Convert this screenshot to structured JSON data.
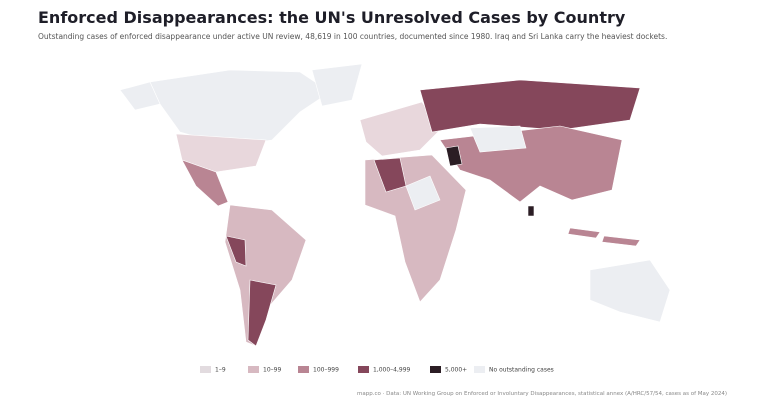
{
  "title": "Enforced Disappearances: the UN's Unresolved Cases by Country",
  "subtitle": "Outstanding cases of enforced disappearance under active UN review, 48,619 in 100 countries, documented since 1980. Iraq and Sri Lanka carry the heaviest dockets.",
  "legend": [
    {
      "label": "1–9",
      "color": "#e2dbdf"
    },
    {
      "label": "10–99",
      "color": "#d7b9c1"
    },
    {
      "label": "100–999",
      "color": "#b98593"
    },
    {
      "label": "1,000–4,999",
      "color": "#85475b"
    },
    {
      "label": "5,000+",
      "color": "#2b1d24"
    },
    {
      "label": "No outstanding cases",
      "color": "#eceef2"
    }
  ],
  "source": "mapp.co · Data: UN Working Group on Enforced or Involuntary Disappearances, statistical annex (A/HRC/57/54, cases as of May 2024)"
}
